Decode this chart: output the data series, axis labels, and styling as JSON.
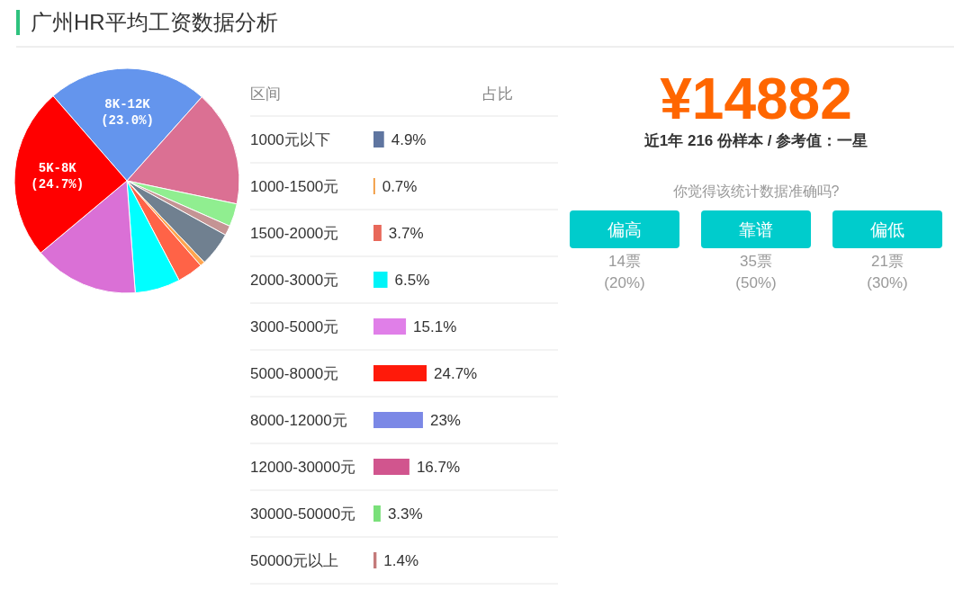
{
  "chart_data": [
    {
      "type": "pie",
      "title": "广州HR平均工资数据分析",
      "categories": [
        "8K-12K",
        null,
        null,
        null,
        null,
        null,
        null,
        null,
        null,
        "5K-8K"
      ],
      "values": [
        23.0,
        16.7,
        3.3,
        1.4,
        4.9,
        0.7,
        3.7,
        6.5,
        15.1,
        24.7
      ],
      "colors": [
        "#6495ed",
        "#db7093",
        "#90ee90",
        "#c49494",
        "#708090",
        "#ffa54f",
        "#ff6347",
        "#00ffff",
        "#da70d6",
        "#ff0000"
      ],
      "value_labels": [
        "(23.0%)",
        null,
        null,
        null,
        null,
        null,
        null,
        null,
        null,
        "(24.7%)"
      ]
    },
    {
      "type": "bar",
      "orientation": "horizontal",
      "ylabel": "区间",
      "xlabel": "占比",
      "categories": [
        "1000元以下",
        "1000-1500元",
        "1500-2000元",
        "2000-3000元",
        "3000-5000元",
        "5000-8000元",
        "8000-12000元",
        "12000-30000元",
        "30000-50000元",
        "50000元以上"
      ],
      "values": [
        4.9,
        0.7,
        3.7,
        6.5,
        15.1,
        24.7,
        23,
        16.7,
        3.3,
        1.4
      ],
      "colors": [
        "#5f75a0",
        "#f0922e",
        "#e8685a",
        "#00f4f8",
        "#e07fe8",
        "#ff1a0a",
        "#7b88e6",
        "#d1558e",
        "#7ae07a",
        "#c47a7a"
      ],
      "value_labels": [
        "4.9%",
        "0.7%",
        "3.7%",
        "6.5%",
        "15.1%",
        "24.7%",
        "23%",
        "16.7%",
        "3.3%",
        "1.4%"
      ]
    },
    {
      "type": "other",
      "title": "¥14882",
      "subtitle": "近1年 216 份样本 / 参考值：一星",
      "categories": [
        "偏高",
        "靠谱",
        "偏低"
      ],
      "annotations": [
        "你觉得该统计数据准确吗?",
        "14票",
        "(20%)",
        "35票",
        "(50%)",
        "21票",
        "(30%)"
      ]
    }
  ]
}
